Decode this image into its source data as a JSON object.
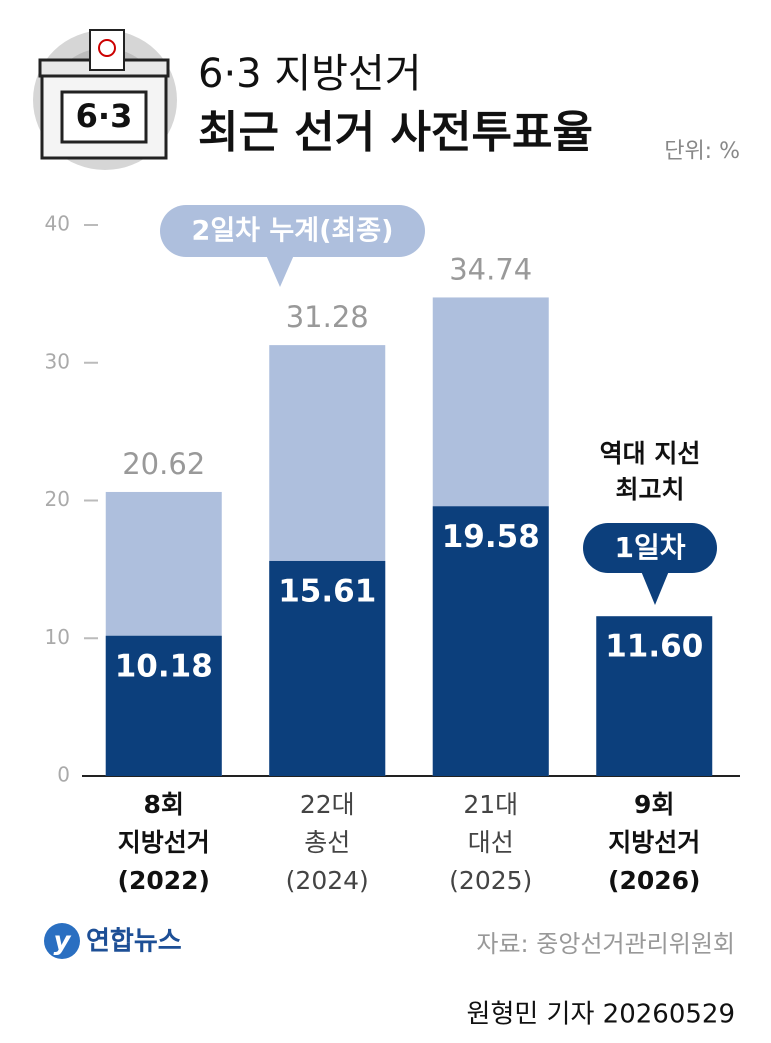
{
  "header": {
    "title": "6·3 지방선거",
    "subtitle": "최근 선거 사전투표율",
    "unit": "단위: %",
    "illustration_label": "6·3"
  },
  "chart_data": {
    "type": "bar",
    "overlap": true,
    "categories": [
      [
        "8회",
        "지방선거",
        "(2022)"
      ],
      [
        "22대",
        "총선",
        "(2024)"
      ],
      [
        "21대",
        "대선",
        "(2025)"
      ],
      [
        "9회",
        "지방선거",
        "(2026)"
      ]
    ],
    "category_bold": [
      true,
      false,
      false,
      true
    ],
    "series": [
      {
        "name": "2일차 누계(최종)",
        "color": "#aebfdd",
        "values": [
          20.62,
          31.28,
          34.74,
          null
        ]
      },
      {
        "name": "1일차",
        "color": "#0c3f7c",
        "values": [
          10.18,
          15.61,
          19.58,
          11.6
        ],
        "value_labels": [
          "10.18",
          "15.61",
          "19.58",
          "11.60"
        ]
      }
    ],
    "annotation": [
      "역대 지선",
      "최고치"
    ],
    "ylim": [
      0,
      40
    ],
    "yticks": [
      0,
      10,
      20,
      30,
      40
    ]
  },
  "footer": {
    "logo": "연합뉴스",
    "source": "자료: 중앙선거관리위원회",
    "credit": "원형민 기자 20260529"
  }
}
